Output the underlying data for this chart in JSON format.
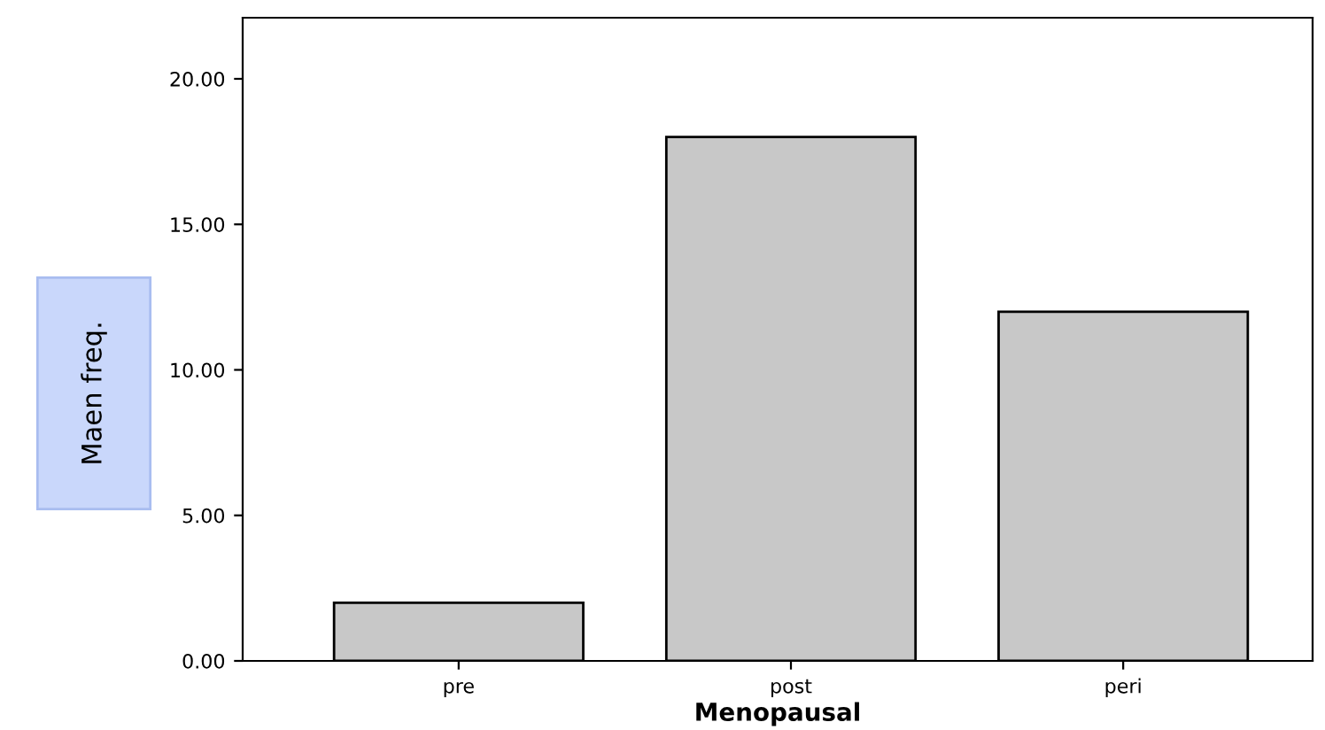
{
  "chart_data": {
    "type": "bar",
    "xlabel": "Menopausal",
    "ylabel": "Maen freq.",
    "categories": [
      "pre",
      "post",
      "peri"
    ],
    "values": [
      2,
      18,
      12
    ],
    "color": "#c8c8c8",
    "ylim": [
      0,
      22.1
    ],
    "yticks": [
      {
        "value": 0,
        "label": "0.00"
      },
      {
        "value": 5,
        "label": "5.00"
      },
      {
        "value": 10,
        "label": "10.00"
      },
      {
        "value": 15,
        "label": "15.00"
      },
      {
        "value": 20,
        "label": "20.00"
      }
    ],
    "grid": false
  }
}
